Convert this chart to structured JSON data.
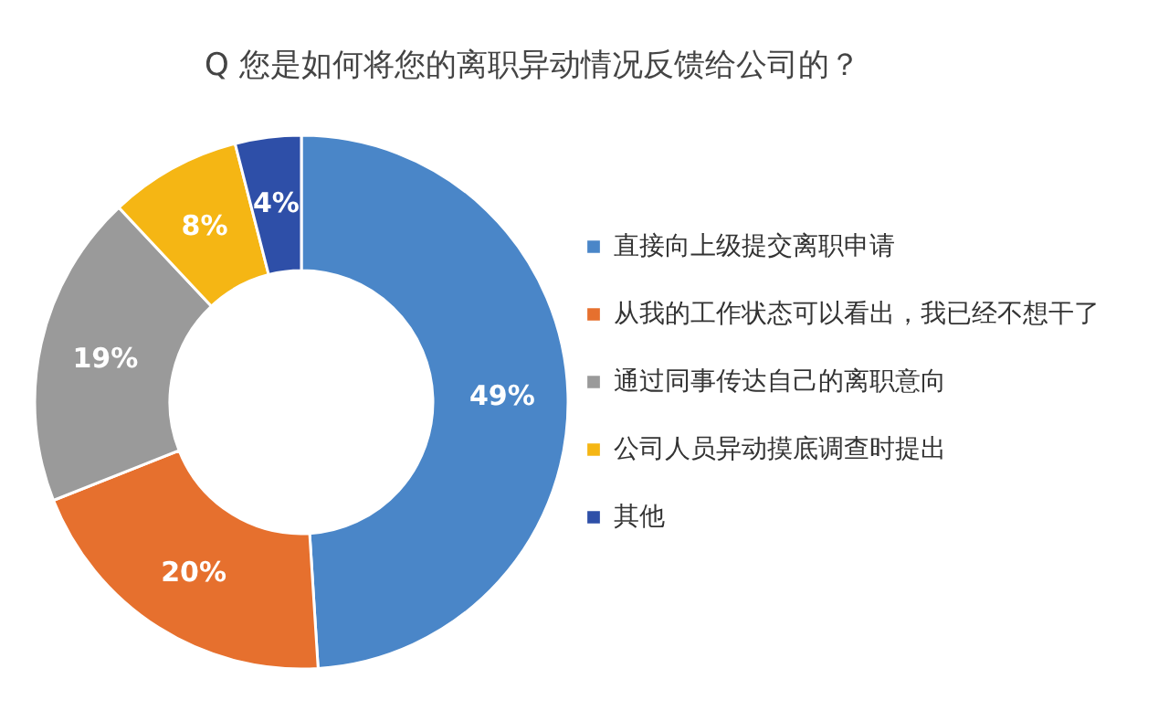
{
  "chart_data": {
    "type": "donut",
    "title": "Q 您是如何将您的离职异动情况反馈给公司的？",
    "categories": [
      "直接向上级提交离职申请",
      "从我的工作状态可以看出，我已经不想干了",
      "通过同事传达自己的离职意向",
      "公司人员异动摸底调查时提出",
      "其他"
    ],
    "values": [
      49,
      20,
      19,
      8,
      4
    ],
    "colors": [
      "#4a86c8",
      "#e6702e",
      "#9a9a9a",
      "#f5b614",
      "#2e4fa8"
    ],
    "value_labels": [
      "49%",
      "20%",
      "19%",
      "8%",
      "4%"
    ],
    "legend": "right"
  }
}
